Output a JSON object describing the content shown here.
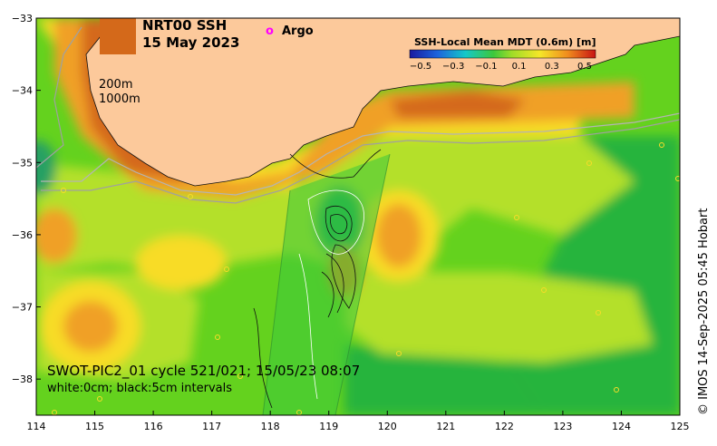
{
  "title": {
    "line1": "NRT00 SSH",
    "line2": "15 May 2023"
  },
  "legend": {
    "argo_symbol": "o",
    "argo_label": "Argo",
    "argo_color": "#ff00ff"
  },
  "isobaths": [
    "200m",
    "1000m"
  ],
  "colorbar": {
    "title": "SSH-Local Mean MDT (0.6m) [m]",
    "ticks": [
      "−0.5",
      "−0.3",
      "−0.1",
      "0.1",
      "0.3",
      "0.5"
    ]
  },
  "annotation": {
    "line1": "SWOT-PIC2_01 cycle 521/021; 15/05/23 08:07",
    "line2": "white:0cm; black:5cm intervals"
  },
  "credit": "© IMOS 14-Sep-2025 05:45 Hobart",
  "axes": {
    "x_ticks": [
      "114",
      "115",
      "116",
      "117",
      "118",
      "119",
      "120",
      "121",
      "122",
      "123",
      "124",
      "125"
    ],
    "y_ticks": [
      "−33",
      "−34",
      "−35",
      "−36",
      "−37",
      "−38"
    ],
    "xlim": [
      114,
      125
    ],
    "ylim": [
      -38.5,
      -33
    ]
  },
  "colors": {
    "land": "#fcc99b",
    "strong_high": "#d4691a",
    "high": "#f0a028",
    "mid_high": "#f8dc28",
    "neutral": "#b4e02c",
    "low": "#64d21e",
    "lower": "#28b43c"
  }
}
